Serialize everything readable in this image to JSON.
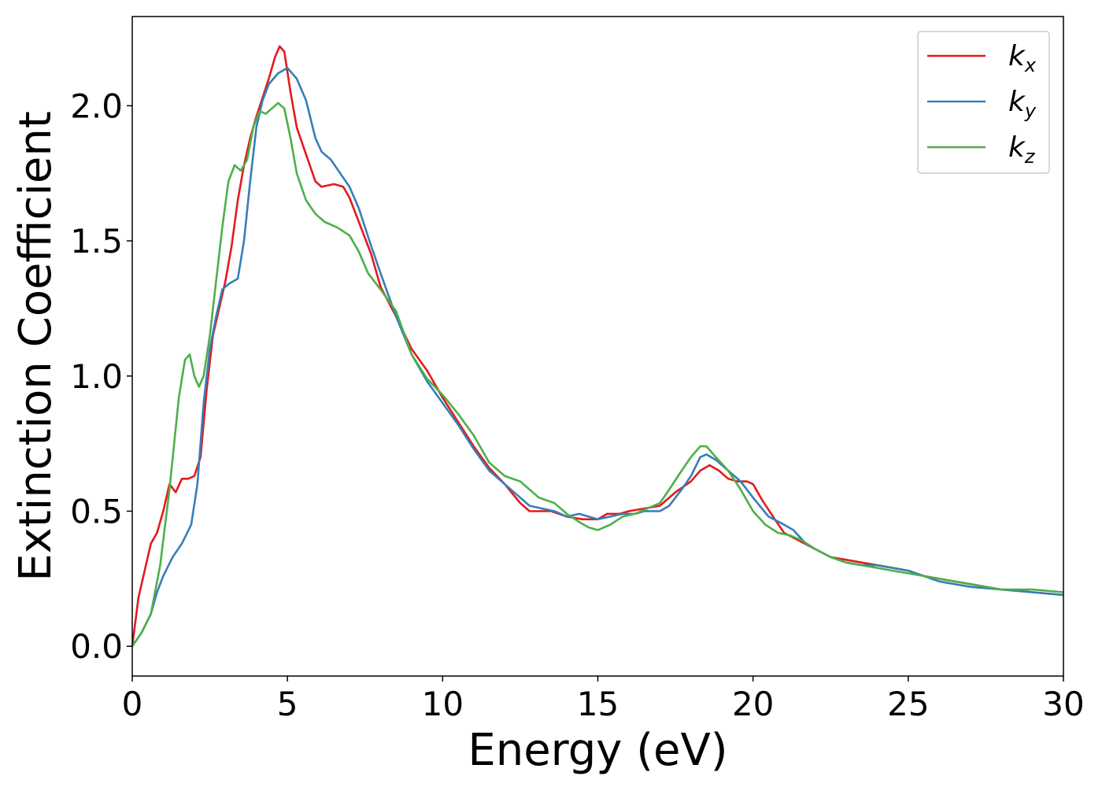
{
  "chart_data": {
    "type": "line",
    "title": "",
    "xlabel": "Energy (eV)",
    "ylabel": "Extinction Coefficient",
    "xlim": [
      0,
      30
    ],
    "ylim": [
      -0.11,
      2.33
    ],
    "xticks": [
      "0",
      "5",
      "10",
      "15",
      "20",
      "25",
      "30"
    ],
    "yticks": [
      "0.0",
      "0.5",
      "1.0",
      "1.5",
      "2.0"
    ],
    "grid": false,
    "legend_position": "top-right",
    "series": [
      {
        "name": "k_x",
        "legend_main": "k",
        "legend_sub": "x",
        "color": "#e41a1c",
        "points": [
          [
            0,
            0.0
          ],
          [
            0.2,
            0.18
          ],
          [
            0.4,
            0.28
          ],
          [
            0.6,
            0.38
          ],
          [
            0.8,
            0.42
          ],
          [
            1.0,
            0.5
          ],
          [
            1.2,
            0.6
          ],
          [
            1.4,
            0.57
          ],
          [
            1.6,
            0.62
          ],
          [
            1.8,
            0.62
          ],
          [
            2.0,
            0.63
          ],
          [
            2.2,
            0.7
          ],
          [
            2.4,
            0.95
          ],
          [
            2.6,
            1.15
          ],
          [
            2.8,
            1.25
          ],
          [
            3.0,
            1.35
          ],
          [
            3.2,
            1.48
          ],
          [
            3.4,
            1.65
          ],
          [
            3.6,
            1.78
          ],
          [
            3.8,
            1.88
          ],
          [
            4.0,
            1.96
          ],
          [
            4.2,
            2.03
          ],
          [
            4.4,
            2.1
          ],
          [
            4.6,
            2.18
          ],
          [
            4.75,
            2.22
          ],
          [
            4.9,
            2.2
          ],
          [
            5.1,
            2.05
          ],
          [
            5.3,
            1.92
          ],
          [
            5.6,
            1.82
          ],
          [
            5.9,
            1.72
          ],
          [
            6.1,
            1.7
          ],
          [
            6.5,
            1.71
          ],
          [
            6.8,
            1.7
          ],
          [
            7.0,
            1.66
          ],
          [
            7.3,
            1.57
          ],
          [
            7.7,
            1.45
          ],
          [
            8.0,
            1.33
          ],
          [
            8.5,
            1.22
          ],
          [
            9.0,
            1.1
          ],
          [
            9.5,
            1.02
          ],
          [
            10.0,
            0.92
          ],
          [
            10.5,
            0.83
          ],
          [
            11.0,
            0.74
          ],
          [
            11.5,
            0.66
          ],
          [
            12.0,
            0.6
          ],
          [
            12.5,
            0.53
          ],
          [
            12.8,
            0.5
          ],
          [
            13.2,
            0.5
          ],
          [
            13.5,
            0.5
          ],
          [
            14.0,
            0.48
          ],
          [
            14.5,
            0.47
          ],
          [
            15.0,
            0.47
          ],
          [
            15.3,
            0.49
          ],
          [
            15.7,
            0.49
          ],
          [
            16.0,
            0.5
          ],
          [
            16.5,
            0.51
          ],
          [
            17.0,
            0.52
          ],
          [
            17.5,
            0.57
          ],
          [
            18.0,
            0.61
          ],
          [
            18.3,
            0.65
          ],
          [
            18.6,
            0.67
          ],
          [
            18.9,
            0.65
          ],
          [
            19.2,
            0.62
          ],
          [
            19.5,
            0.61
          ],
          [
            19.8,
            0.61
          ],
          [
            20.0,
            0.6
          ],
          [
            20.3,
            0.54
          ],
          [
            20.7,
            0.47
          ],
          [
            21.0,
            0.42
          ],
          [
            21.5,
            0.39
          ],
          [
            22.0,
            0.36
          ],
          [
            22.5,
            0.33
          ],
          [
            23.0,
            0.32
          ],
          [
            23.5,
            0.31
          ],
          [
            24.0,
            0.3
          ],
          [
            24.5,
            0.29
          ],
          [
            25.0,
            0.28
          ],
          [
            25.5,
            0.26
          ],
          [
            26.0,
            0.25
          ],
          [
            27.0,
            0.23
          ],
          [
            28.0,
            0.21
          ],
          [
            29.0,
            0.2
          ],
          [
            30.0,
            0.19
          ]
        ]
      },
      {
        "name": "k_y",
        "legend_main": "k",
        "legend_sub": "y",
        "color": "#377eb8",
        "points": [
          [
            0,
            0.0
          ],
          [
            0.3,
            0.05
          ],
          [
            0.6,
            0.12
          ],
          [
            0.8,
            0.2
          ],
          [
            1.0,
            0.26
          ],
          [
            1.3,
            0.33
          ],
          [
            1.6,
            0.38
          ],
          [
            1.9,
            0.45
          ],
          [
            2.1,
            0.6
          ],
          [
            2.3,
            0.9
          ],
          [
            2.5,
            1.1
          ],
          [
            2.7,
            1.22
          ],
          [
            2.9,
            1.32
          ],
          [
            3.1,
            1.34
          ],
          [
            3.4,
            1.36
          ],
          [
            3.6,
            1.5
          ],
          [
            3.8,
            1.72
          ],
          [
            4.0,
            1.92
          ],
          [
            4.2,
            2.02
          ],
          [
            4.4,
            2.08
          ],
          [
            4.7,
            2.12
          ],
          [
            5.0,
            2.14
          ],
          [
            5.3,
            2.1
          ],
          [
            5.6,
            2.02
          ],
          [
            5.9,
            1.88
          ],
          [
            6.1,
            1.83
          ],
          [
            6.4,
            1.8
          ],
          [
            6.7,
            1.75
          ],
          [
            7.0,
            1.7
          ],
          [
            7.3,
            1.62
          ],
          [
            7.7,
            1.48
          ],
          [
            8.0,
            1.38
          ],
          [
            8.5,
            1.22
          ],
          [
            9.0,
            1.08
          ],
          [
            9.5,
            0.98
          ],
          [
            10.0,
            0.9
          ],
          [
            10.5,
            0.82
          ],
          [
            11.0,
            0.73
          ],
          [
            11.5,
            0.65
          ],
          [
            12.0,
            0.6
          ],
          [
            12.5,
            0.55
          ],
          [
            12.8,
            0.52
          ],
          [
            13.2,
            0.51
          ],
          [
            13.6,
            0.5
          ],
          [
            14.0,
            0.48
          ],
          [
            14.4,
            0.49
          ],
          [
            14.7,
            0.48
          ],
          [
            15.0,
            0.47
          ],
          [
            15.4,
            0.48
          ],
          [
            15.8,
            0.49
          ],
          [
            16.2,
            0.49
          ],
          [
            16.5,
            0.5
          ],
          [
            17.0,
            0.5
          ],
          [
            17.3,
            0.52
          ],
          [
            17.7,
            0.58
          ],
          [
            18.0,
            0.63
          ],
          [
            18.3,
            0.7
          ],
          [
            18.5,
            0.71
          ],
          [
            18.8,
            0.69
          ],
          [
            19.2,
            0.65
          ],
          [
            19.6,
            0.61
          ],
          [
            20.0,
            0.55
          ],
          [
            20.5,
            0.48
          ],
          [
            21.0,
            0.45
          ],
          [
            21.3,
            0.43
          ],
          [
            21.7,
            0.38
          ],
          [
            22.0,
            0.36
          ],
          [
            22.5,
            0.33
          ],
          [
            23.0,
            0.31
          ],
          [
            23.5,
            0.3
          ],
          [
            24.0,
            0.3
          ],
          [
            24.5,
            0.29
          ],
          [
            25.0,
            0.28
          ],
          [
            25.5,
            0.26
          ],
          [
            26.0,
            0.24
          ],
          [
            27.0,
            0.22
          ],
          [
            28.0,
            0.21
          ],
          [
            29.0,
            0.2
          ],
          [
            30.0,
            0.19
          ]
        ]
      },
      {
        "name": "k_z",
        "legend_main": "k",
        "legend_sub": "z",
        "color": "#4daf4a",
        "points": [
          [
            0,
            0.0
          ],
          [
            0.3,
            0.05
          ],
          [
            0.6,
            0.12
          ],
          [
            0.9,
            0.3
          ],
          [
            1.2,
            0.58
          ],
          [
            1.5,
            0.92
          ],
          [
            1.7,
            1.06
          ],
          [
            1.85,
            1.08
          ],
          [
            2.0,
            1.0
          ],
          [
            2.15,
            0.96
          ],
          [
            2.3,
            1.0
          ],
          [
            2.5,
            1.15
          ],
          [
            2.7,
            1.35
          ],
          [
            2.9,
            1.55
          ],
          [
            3.1,
            1.72
          ],
          [
            3.3,
            1.78
          ],
          [
            3.5,
            1.76
          ],
          [
            3.7,
            1.8
          ],
          [
            3.9,
            1.92
          ],
          [
            4.1,
            1.98
          ],
          [
            4.3,
            1.97
          ],
          [
            4.5,
            1.99
          ],
          [
            4.7,
            2.01
          ],
          [
            4.9,
            1.99
          ],
          [
            5.1,
            1.88
          ],
          [
            5.3,
            1.75
          ],
          [
            5.6,
            1.65
          ],
          [
            5.9,
            1.6
          ],
          [
            6.2,
            1.57
          ],
          [
            6.6,
            1.55
          ],
          [
            7.0,
            1.52
          ],
          [
            7.3,
            1.46
          ],
          [
            7.6,
            1.38
          ],
          [
            8.0,
            1.32
          ],
          [
            8.5,
            1.24
          ],
          [
            9.0,
            1.08
          ],
          [
            9.5,
            0.99
          ],
          [
            10.0,
            0.93
          ],
          [
            10.5,
            0.86
          ],
          [
            11.0,
            0.78
          ],
          [
            11.5,
            0.68
          ],
          [
            12.0,
            0.63
          ],
          [
            12.5,
            0.61
          ],
          [
            12.8,
            0.58
          ],
          [
            13.1,
            0.55
          ],
          [
            13.6,
            0.53
          ],
          [
            14.0,
            0.49
          ],
          [
            14.4,
            0.46
          ],
          [
            14.7,
            0.44
          ],
          [
            15.0,
            0.43
          ],
          [
            15.4,
            0.45
          ],
          [
            15.8,
            0.48
          ],
          [
            16.2,
            0.49
          ],
          [
            16.6,
            0.51
          ],
          [
            17.0,
            0.53
          ],
          [
            17.3,
            0.58
          ],
          [
            17.7,
            0.65
          ],
          [
            18.0,
            0.7
          ],
          [
            18.3,
            0.74
          ],
          [
            18.5,
            0.74
          ],
          [
            18.8,
            0.7
          ],
          [
            19.2,
            0.65
          ],
          [
            19.6,
            0.58
          ],
          [
            20.0,
            0.5
          ],
          [
            20.4,
            0.45
          ],
          [
            20.8,
            0.42
          ],
          [
            21.2,
            0.41
          ],
          [
            21.6,
            0.39
          ],
          [
            22.0,
            0.36
          ],
          [
            22.5,
            0.33
          ],
          [
            23.0,
            0.31
          ],
          [
            23.5,
            0.3
          ],
          [
            24.0,
            0.29
          ],
          [
            24.5,
            0.28
          ],
          [
            25.0,
            0.27
          ],
          [
            25.5,
            0.26
          ],
          [
            26.0,
            0.25
          ],
          [
            27.0,
            0.23
          ],
          [
            28.0,
            0.21
          ],
          [
            29.0,
            0.21
          ],
          [
            30.0,
            0.2
          ]
        ]
      }
    ]
  }
}
